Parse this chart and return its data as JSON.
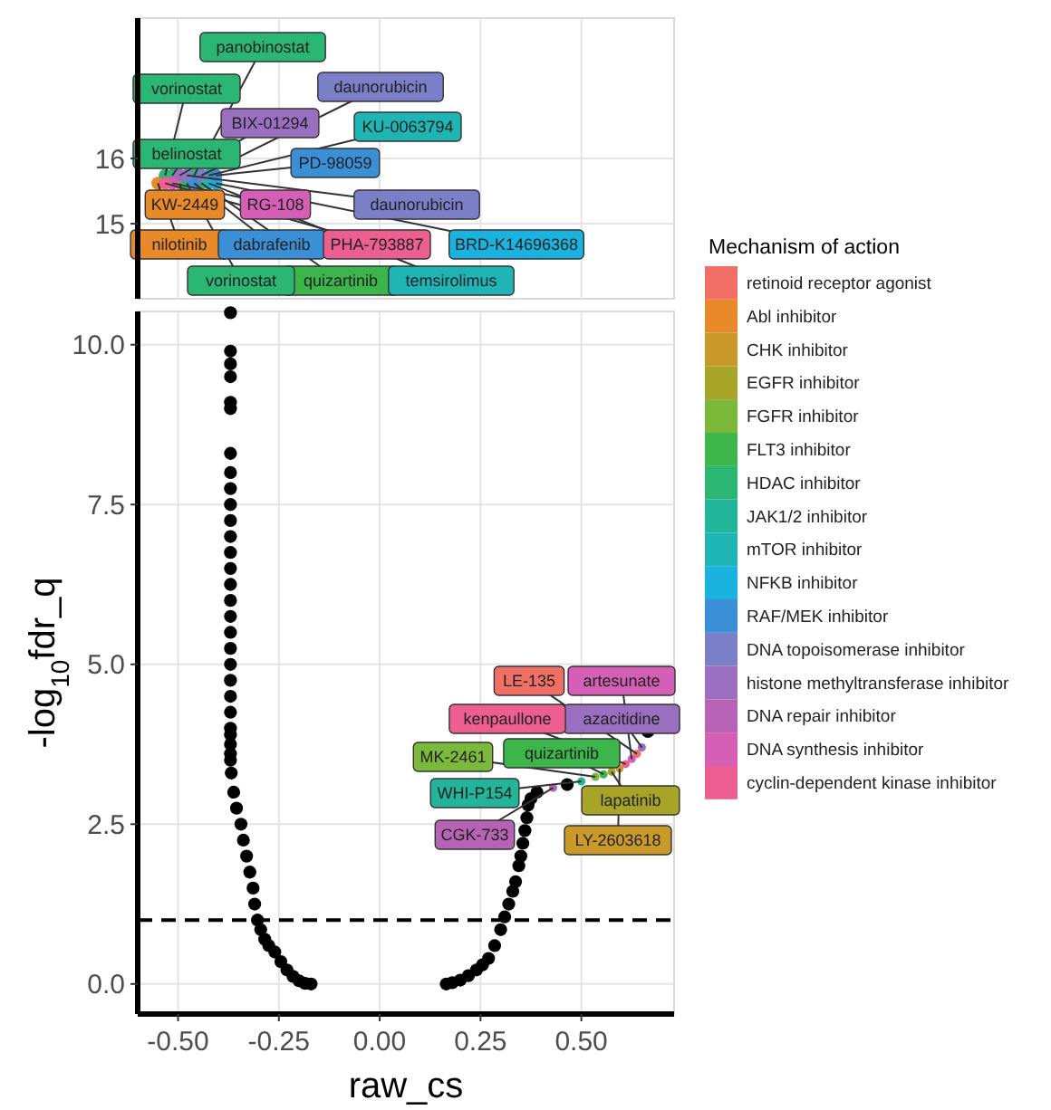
{
  "chart_data": [
    {
      "type": "scatter",
      "xlim": [
        -0.6,
        0.73
      ],
      "xticks": [
        -0.5,
        -0.25,
        0,
        0.25,
        0.5
      ],
      "ylim": [
        13.85,
        18.15
      ],
      "yticks": [
        15,
        16
      ],
      "tick_labels": "y",
      "grid": true,
      "marker": "circle",
      "series": [
        {
          "color": "#e8892a",
          "x": [
            -0.496,
            -0.55
          ],
          "values": [
            15.62,
            15.62
          ],
          "value_labels": [
            "KW-2449",
            "nilotinib"
          ]
        },
        {
          "color": "#3cb54a",
          "x": [
            -0.442
          ],
          "values": [
            15.62
          ],
          "value_labels": [
            "quizartinib"
          ]
        },
        {
          "color": "#2bb673",
          "x": [
            -0.46,
            -0.532,
            -0.514,
            -0.478
          ],
          "values": [
            15.74,
            15.74,
            15.74,
            15.62
          ],
          "value_labels": [
            "panobinostat",
            "vorinostat",
            "belinostat",
            "vorinostat"
          ]
        },
        {
          "color": "#1fb5b5",
          "x": [
            -0.424,
            -0.424
          ],
          "values": [
            15.74,
            15.62
          ],
          "value_labels": [
            "KU-0063794",
            "temsirolimus"
          ]
        },
        {
          "color": "#1ab3e0",
          "x": [
            -0.406
          ],
          "values": [
            15.62
          ],
          "value_labels": [
            "BRD-K14696368"
          ]
        },
        {
          "color": "#3b8fd6",
          "x": [
            -0.406,
            -0.46
          ],
          "values": [
            15.74,
            15.62
          ],
          "value_labels": [
            "PD-98059",
            "dabrafenib"
          ]
        },
        {
          "color": "#7a7fc8",
          "x": [
            -0.442,
            -0.478
          ],
          "values": [
            15.74,
            15.74
          ],
          "value_labels": [
            "daunorubicin",
            "daunorubicin"
          ]
        },
        {
          "color": "#9a6fbf",
          "x": [
            -0.496
          ],
          "values": [
            15.74
          ],
          "value_labels": [
            "BIX-01294"
          ]
        },
        {
          "color": "#d45fb5",
          "x": [
            -0.514
          ],
          "values": [
            15.62
          ],
          "value_labels": [
            "RG-108"
          ]
        },
        {
          "color": "#ec5f90",
          "x": [
            -0.532
          ],
          "values": [
            15.62
          ],
          "value_labels": [
            "PHA-793887"
          ]
        }
      ]
    },
    {
      "type": "scatter",
      "xlabel": "raw_cs",
      "ylabel": "-log$_{10}$fdr_q",
      "xlim": [
        -0.6,
        0.73
      ],
      "xticks": [
        {
          "value": -0.5,
          "label": "-0.50"
        },
        {
          "value": -0.25,
          "label": "-0.25"
        },
        {
          "value": 0,
          "label": "0.00"
        },
        {
          "value": 0.25,
          "label": "0.25"
        },
        {
          "value": 0.5,
          "label": "0.50"
        }
      ],
      "ylim": [
        -0.47,
        10.52
      ],
      "yticks": [
        {
          "value": 0,
          "label": "0.0"
        },
        {
          "value": 2.5,
          "label": "2.5"
        },
        {
          "value": 5,
          "label": "5.0"
        },
        {
          "value": 7.5,
          "label": "7.5"
        },
        {
          "value": 10,
          "label": "10.0"
        }
      ],
      "grid": true,
      "marker": "circle",
      "legend_title": "Mechanism of action",
      "legend": "right",
      "ref_lines": [
        {
          "axis": "y",
          "value": 1,
          "line_style": "dashed"
        }
      ],
      "series": [
        {
          "color": "#000000",
          "x": [
            -0.37,
            -0.37,
            -0.37,
            -0.37,
            -0.37,
            -0.37,
            -0.37,
            -0.37,
            -0.37,
            -0.37,
            -0.37,
            -0.37,
            -0.37,
            -0.37,
            -0.37,
            -0.37,
            -0.37,
            -0.37,
            -0.37,
            -0.37,
            -0.37,
            -0.37,
            -0.37,
            -0.37,
            -0.37,
            -0.37,
            -0.37,
            -0.37,
            -0.368,
            -0.362,
            -0.355,
            -0.344,
            -0.338,
            -0.33,
            -0.322,
            -0.314,
            -0.31,
            -0.303,
            -0.295,
            -0.285,
            -0.275,
            -0.26,
            -0.245,
            -0.23,
            -0.215,
            -0.2,
            -0.185,
            -0.17,
            0.165,
            0.18,
            0.2,
            0.22,
            0.24,
            0.255,
            0.27,
            0.285,
            0.3,
            0.31,
            0.32,
            0.33,
            0.337,
            0.345,
            0.35,
            0.355,
            0.36,
            0.365,
            0.368,
            0.375,
            0.39,
            0.465,
            0.665
          ],
          "values": [
            10.5,
            9.9,
            9.7,
            9.5,
            9.1,
            9.0,
            8.3,
            8.0,
            7.75,
            7.5,
            7.25,
            7.0,
            6.75,
            6.5,
            6.25,
            6.0,
            5.75,
            5.5,
            5.25,
            5.0,
            4.75,
            4.5,
            4.25,
            4.0,
            3.9,
            3.75,
            3.6,
            3.5,
            3.3,
            3.0,
            2.75,
            2.5,
            2.25,
            2.0,
            1.75,
            1.5,
            1.25,
            1.0,
            0.85,
            0.7,
            0.6,
            0.5,
            0.35,
            0.22,
            0.12,
            0.05,
            0.01,
            0.0,
            0.0,
            0.02,
            0.06,
            0.13,
            0.22,
            0.3,
            0.4,
            0.6,
            0.85,
            1.05,
            1.25,
            1.45,
            1.6,
            1.85,
            2.0,
            2.2,
            2.4,
            2.6,
            2.8,
            2.9,
            3.0,
            3.12,
            3.95
          ]
        },
        {
          "name": "retinoid receptor agonist",
          "color": "#f07068",
          "x": [
            0.638
          ],
          "values": [
            3.6
          ],
          "value_labels": [
            "LE-135"
          ]
        },
        {
          "name": "Abl inhibitor",
          "color": "#e8892a"
        },
        {
          "name": "CHK inhibitor",
          "color": "#c99a2a",
          "x": [
            0.595
          ],
          "values": [
            3.37
          ],
          "value_labels": [
            "LY-2603618"
          ]
        },
        {
          "name": "EGFR inhibitor",
          "color": "#a8a428",
          "x": [
            0.575
          ],
          "values": [
            3.32
          ],
          "value_labels": [
            "lapatinib"
          ]
        },
        {
          "name": "FGFR inhibitor",
          "color": "#7cb83a",
          "x": [
            0.535
          ],
          "values": [
            3.24
          ],
          "value_labels": [
            "MK-2461"
          ]
        },
        {
          "name": "FLT3 inhibitor",
          "color": "#3cb54a",
          "x": [
            0.555
          ],
          "values": [
            3.28
          ],
          "value_labels": [
            "quizartinib"
          ]
        },
        {
          "name": "HDAC inhibitor",
          "color": "#2bb673"
        },
        {
          "name": "JAK1/2 inhibitor",
          "color": "#22b59a",
          "x": [
            0.5
          ],
          "values": [
            3.17
          ],
          "value_labels": [
            "WHI-P154"
          ]
        },
        {
          "name": "mTOR inhibitor",
          "color": "#1fb5b5"
        },
        {
          "name": "NFKB inhibitor",
          "color": "#1ab3e0"
        },
        {
          "name": "RAF/MEK inhibitor",
          "color": "#3b8fd6"
        },
        {
          "name": "DNA topoisomerase inhibitor",
          "color": "#7a7fc8"
        },
        {
          "name": "histone methyltransferase inhibitor",
          "color": "#9a6fbf",
          "x": [
            0.65
          ],
          "values": [
            3.7
          ],
          "value_labels": [
            "azacitidine"
          ]
        },
        {
          "name": "DNA repair inhibitor",
          "color": "#b663b5",
          "x": [
            0.43
          ],
          "values": [
            3.07
          ],
          "value_labels": [
            "CGK-733"
          ]
        },
        {
          "name": "DNA synthesis inhibitor",
          "color": "#d45fb5",
          "x": [
            0.625
          ],
          "values": [
            3.52
          ],
          "value_labels": [
            "artesunate"
          ]
        },
        {
          "name": "cyclin-dependent kinase inhibitor",
          "color": "#ec5f90",
          "x": [
            0.61
          ],
          "values": [
            3.44
          ],
          "value_labels": [
            "kenpaullone"
          ]
        }
      ]
    }
  ]
}
